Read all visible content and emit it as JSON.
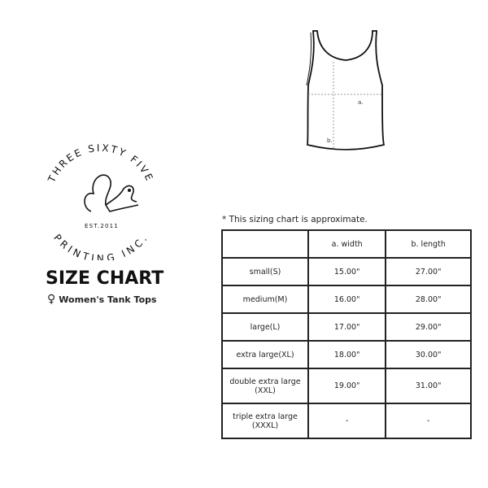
{
  "logo": {
    "top_text": "THREE SIXTY FIVE",
    "bottom_text": "PRINTING INC.",
    "established": "EST.2011"
  },
  "title": "SIZE CHART",
  "subtitle": {
    "icon": "female-symbol-icon",
    "symbol": "♀",
    "text": "Women's Tank Tops"
  },
  "diagram": {
    "label_a": "a.",
    "label_b": "b."
  },
  "note": "* This sizing chart is approximate.",
  "table": {
    "headers": [
      "",
      "a. width",
      "b. length"
    ],
    "rows": [
      [
        "small(S)",
        "15.00\"",
        "27.00\""
      ],
      [
        "medium(M)",
        "16.00\"",
        "28.00\""
      ],
      [
        "large(L)",
        "17.00\"",
        "29.00\""
      ],
      [
        "extra large(XL)",
        "18.00\"",
        "30.00\""
      ],
      [
        "double extra large (XXL)",
        "19.00\"",
        "31.00\""
      ],
      [
        "triple extra large (XXXL)",
        "-",
        "-"
      ]
    ]
  }
}
